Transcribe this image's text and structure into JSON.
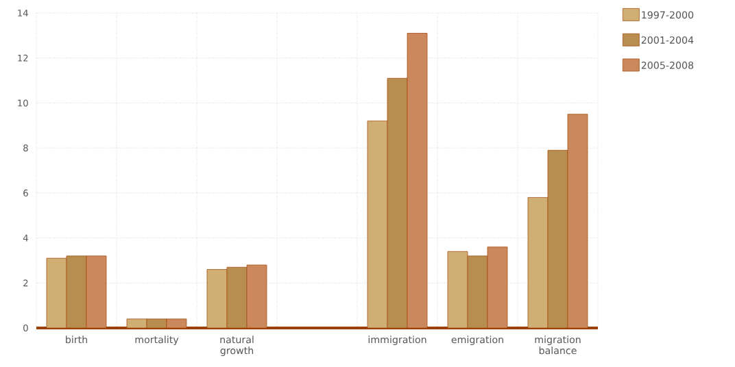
{
  "chart_data": {
    "type": "bar",
    "categories": [
      "birth",
      "mortality",
      "natural growth",
      null,
      "immigration",
      "emigration",
      "migration balance"
    ],
    "series": [
      {
        "name": "1997-2000",
        "color": "#cfaf74",
        "values": [
          3.1,
          0.4,
          2.6,
          null,
          9.2,
          3.4,
          5.8
        ]
      },
      {
        "name": "2001-2004",
        "color": "#b88e50",
        "values": [
          3.2,
          0.4,
          2.7,
          null,
          11.1,
          3.2,
          7.9
        ]
      },
      {
        "name": "2005-2008",
        "color": "#cb885d",
        "values": [
          3.2,
          0.4,
          2.8,
          null,
          13.1,
          3.6,
          9.5
        ]
      }
    ],
    "ylim": [
      0,
      14
    ],
    "yticks": [
      0,
      2,
      4,
      6,
      8,
      10,
      12,
      14
    ],
    "grid": true,
    "legend": "top right"
  }
}
